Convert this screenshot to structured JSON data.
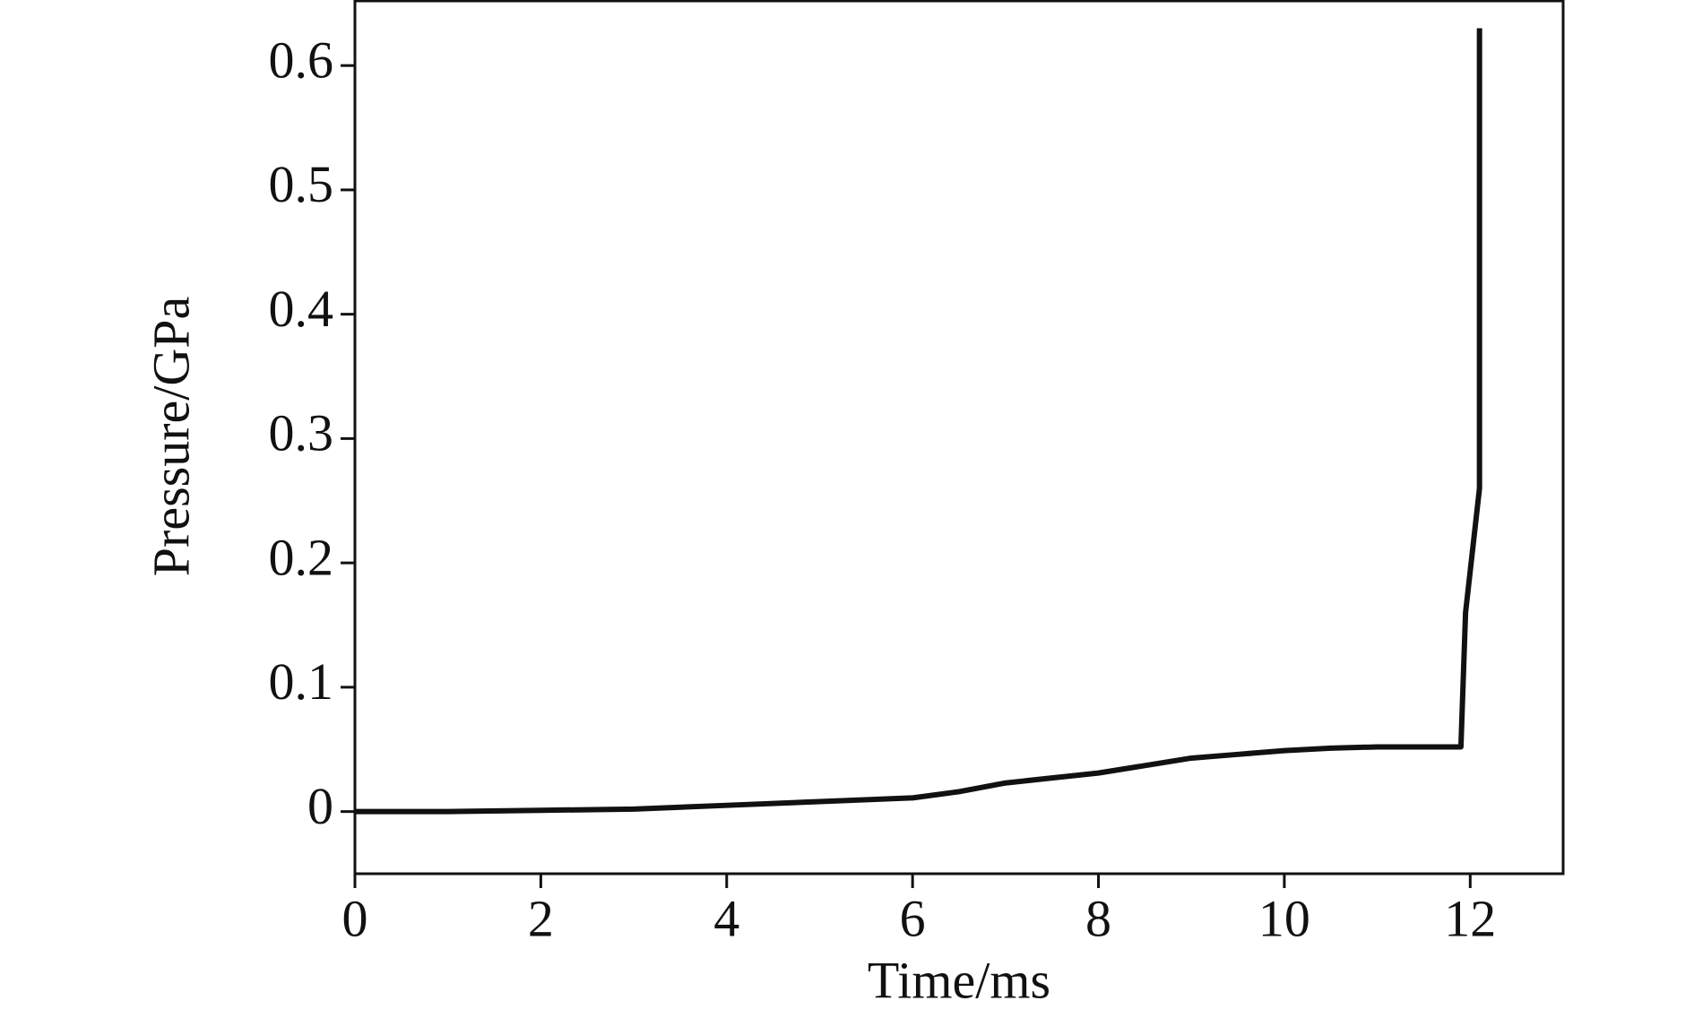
{
  "chart_data": {
    "type": "line",
    "x_label": "Time/ms",
    "y_label": "Pressure/GPa",
    "x": [
      0,
      1,
      2,
      3,
      4,
      5,
      6,
      6.5,
      7,
      7.5,
      8,
      8.5,
      9,
      9.5,
      10,
      10.5,
      11,
      11.5,
      11.9,
      11.95,
      12.1,
      12.1
    ],
    "series": [
      {
        "color": "#111111",
        "values": [
          0,
          0,
          0.001,
          0.002,
          0.005,
          0.008,
          0.011,
          0.016,
          0.023,
          0.027,
          0.031,
          0.037,
          0.043,
          0.046,
          0.049,
          0.051,
          0.052,
          0.052,
          0.052,
          0.16,
          0.26,
          0.63
        ]
      }
    ],
    "xlim": [
      0,
      13
    ],
    "ylim": [
      -0.05,
      0.652
    ],
    "xticks": [
      0,
      2,
      4,
      6,
      8,
      10,
      12
    ],
    "yticks": [
      0,
      0.1,
      0.2,
      0.3,
      0.4,
      0.5,
      0.6
    ]
  }
}
